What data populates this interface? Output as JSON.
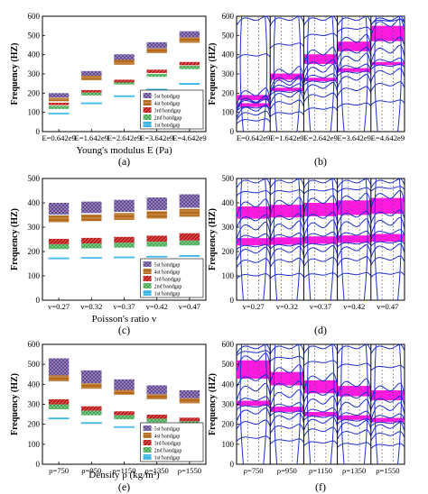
{
  "bar_colors": {
    "b5": "#5b3f8f",
    "b4": "#b56a1a",
    "b3": "#c01a1a",
    "b2": "#3aa54a",
    "b1": "#38b4e8"
  },
  "band_colors": {
    "line": "#1f2fcc",
    "gap": "#ff1adf",
    "dash": "#555555"
  },
  "legend_entries": [
    "5st bandgap",
    "4st bandgap",
    "3rd bandgap",
    "2nd bandgap",
    "1st bandgap"
  ],
  "chart_data": [
    {
      "type": "bar",
      "panel_label": "(a)",
      "xlabel": "Young's modulus E (Pa)",
      "ylabel": "Frequency (HZ)",
      "ylim": [
        0,
        600
      ],
      "yticks": [
        0,
        100,
        200,
        300,
        400,
        500,
        600
      ],
      "categories": [
        "E=0.642e9",
        "E=1.642e9",
        "E=2.642e9",
        "E=3.642e9",
        "E=4.642e9"
      ],
      "series": [
        {
          "name": "5st bandgap",
          "ranges": [
            [
              178,
              200
            ],
            [
              290,
              315
            ],
            [
              373,
              402
            ],
            [
              433,
              465
            ],
            [
              490,
              522
            ]
          ]
        },
        {
          "name": "4st bandgap",
          "ranges": [
            [
              158,
              176
            ],
            [
              268,
              290
            ],
            [
              348,
              373
            ],
            [
              408,
              433
            ],
            [
              462,
              490
            ]
          ]
        },
        {
          "name": "3rd bandgap",
          "ranges": [
            [
              138,
              150
            ],
            [
              203,
              216
            ],
            [
              255,
              270
            ],
            [
              305,
              322
            ],
            [
              345,
              362
            ]
          ]
        },
        {
          "name": "2nd bandgap",
          "ranges": [
            [
              118,
              134
            ],
            [
              188,
              203
            ],
            [
              245,
              256
            ],
            [
              285,
              300
            ],
            [
              325,
              342
            ]
          ]
        },
        {
          "name": "1st bandgap",
          "ranges": [
            [
              93,
              97
            ],
            [
              146,
              150
            ],
            [
              183,
              187
            ],
            [
              217,
              221
            ],
            [
              247,
              251
            ]
          ]
        }
      ]
    },
    {
      "type": "band",
      "panel_label": "(b)",
      "ylabel": "Frequency (HZ)",
      "ylim": [
        0,
        600
      ],
      "yticks": [
        0,
        100,
        200,
        300,
        400,
        500,
        600
      ],
      "categories": [
        "E=0.642e9",
        "E=1.642e9",
        "E=2.642e9",
        "E=3.642e9",
        "E=4.642e9"
      ],
      "gaps": [
        [
          [
            128,
            148
          ],
          [
            163,
            190
          ]
        ],
        [
          [
            210,
            228
          ],
          [
            270,
            302
          ]
        ],
        [
          [
            262,
            280
          ],
          [
            352,
            402
          ]
        ],
        [
          [
            310,
            330
          ],
          [
            418,
            468
          ]
        ],
        [
          [
            345,
            362
          ],
          [
            470,
            550
          ]
        ]
      ]
    },
    {
      "type": "bar",
      "panel_label": "(c)",
      "xlabel": "Poisson's ratio v",
      "ylabel": "Frequency (HZ)",
      "ylim": [
        0,
        500
      ],
      "yticks": [
        0,
        100,
        200,
        300,
        400,
        500
      ],
      "categories": [
        "v=0.27",
        "v=0.32",
        "v=0.37",
        "v=0.42",
        "v=0.47"
      ],
      "series": [
        {
          "name": "5st bandgap",
          "ranges": [
            [
              352,
              400
            ],
            [
              358,
              405
            ],
            [
              363,
              412
            ],
            [
              370,
              422
            ],
            [
              380,
              435
            ]
          ]
        },
        {
          "name": "4st bandgap",
          "ranges": [
            [
              320,
              348
            ],
            [
              325,
              352
            ],
            [
              330,
              358
            ],
            [
              335,
              365
            ],
            [
              343,
              375
            ]
          ]
        },
        {
          "name": "3rd bandgap",
          "ranges": [
            [
              230,
              252
            ],
            [
              233,
              256
            ],
            [
              236,
              260
            ],
            [
              240,
              265
            ],
            [
              245,
              275
            ]
          ]
        },
        {
          "name": "2nd bandgap",
          "ranges": [
            [
              210,
              230
            ],
            [
              213,
              233
            ],
            [
              216,
              236
            ],
            [
              220,
              240
            ],
            [
              225,
              245
            ]
          ]
        },
        {
          "name": "1st bandgap",
          "ranges": [
            [
              170,
              174
            ],
            [
              172,
              176
            ],
            [
              174,
              178
            ],
            [
              177,
              181
            ],
            [
              180,
              184
            ]
          ]
        }
      ]
    },
    {
      "type": "band",
      "panel_label": "(d)",
      "ylabel": "Frequency (HZ)",
      "ylim": [
        0,
        500
      ],
      "yticks": [
        0,
        100,
        200,
        300,
        400,
        500
      ],
      "categories": [
        "v=0.27",
        "v=0.32",
        "v=0.37",
        "v=0.42",
        "v=0.47"
      ],
      "gaps": [
        [
          [
            225,
            255
          ],
          [
            335,
            385
          ]
        ],
        [
          [
            228,
            258
          ],
          [
            340,
            392
          ]
        ],
        [
          [
            232,
            262
          ],
          [
            345,
            400
          ]
        ],
        [
          [
            236,
            266
          ],
          [
            350,
            410
          ]
        ],
        [
          [
            240,
            272
          ],
          [
            355,
            420
          ]
        ]
      ]
    },
    {
      "type": "bar",
      "panel_label": "(e)",
      "xlabel": "Density ρ (kg/m³)",
      "ylabel": "Frequency (HZ)",
      "ylim": [
        0,
        600
      ],
      "yticks": [
        0,
        100,
        200,
        300,
        400,
        500,
        600
      ],
      "categories": [
        "ρ=750",
        "ρ=950",
        "ρ=1150",
        "ρ=1350",
        "ρ=1550"
      ],
      "series": [
        {
          "name": "5st bandgap",
          "ranges": [
            [
              445,
              530
            ],
            [
              405,
              470
            ],
            [
              372,
              425
            ],
            [
              350,
              395
            ],
            [
              330,
              370
            ]
          ]
        },
        {
          "name": "4st bandgap",
          "ranges": [
            [
              415,
              445
            ],
            [
              378,
              405
            ],
            [
              348,
              372
            ],
            [
              325,
              350
            ],
            [
              305,
              330
            ]
          ]
        },
        {
          "name": "3rd bandgap",
          "ranges": [
            [
              300,
              325
            ],
            [
              268,
              290
            ],
            [
              245,
              265
            ],
            [
              228,
              248
            ],
            [
              215,
              233
            ]
          ]
        },
        {
          "name": "2nd bandgap",
          "ranges": [
            [
              275,
              300
            ],
            [
              245,
              268
            ],
            [
              225,
              245
            ],
            [
              210,
              228
            ],
            [
              198,
              215
            ]
          ]
        },
        {
          "name": "1st bandgap",
          "ranges": [
            [
              228,
              232
            ],
            [
              205,
              209
            ],
            [
              185,
              189
            ],
            [
              172,
              176
            ],
            [
              160,
              164
            ]
          ]
        }
      ]
    },
    {
      "type": "band",
      "panel_label": "(f)",
      "ylabel": "Frequency (HZ)",
      "ylim": [
        0,
        600
      ],
      "yticks": [
        0,
        100,
        200,
        300,
        400,
        500,
        600
      ],
      "categories": [
        "ρ=750",
        "ρ=950",
        "ρ=1150",
        "ρ=1350",
        "ρ=1550"
      ],
      "gaps": [
        [
          [
            292,
            318
          ],
          [
            428,
            520
          ]
        ],
        [
          [
            262,
            288
          ],
          [
            395,
            462
          ]
        ],
        [
          [
            240,
            262
          ],
          [
            355,
            420
          ]
        ],
        [
          [
            222,
            245
          ],
          [
            340,
            392
          ]
        ],
        [
          [
            210,
            232
          ],
          [
            320,
            370
          ]
        ]
      ]
    }
  ]
}
